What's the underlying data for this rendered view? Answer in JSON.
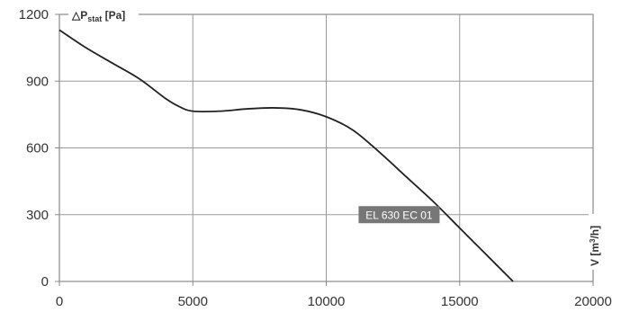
{
  "chart_data": {
    "type": "line",
    "title": "",
    "ylabel": {
      "prefix": "△P",
      "sub": "stat",
      "suffix": " [Pa]"
    },
    "xlabel": {
      "prefix": "V [m",
      "sup": "3",
      "suffix": "/h]"
    },
    "xlim": [
      0,
      20000
    ],
    "ylim": [
      0,
      1200
    ],
    "x_ticks": [
      0,
      5000,
      10000,
      15000,
      20000
    ],
    "y_ticks": [
      0,
      300,
      600,
      900,
      1200
    ],
    "x_tick_labels": [
      "0",
      "5000",
      "10000",
      "15000",
      "20000"
    ],
    "y_tick_labels": [
      "0",
      "300",
      "600",
      "900",
      "1200"
    ],
    "grid": true,
    "series": [
      {
        "name": "EL 630 EC 01",
        "color": "#222222",
        "x": [
          0,
          1000,
          2000,
          3000,
          4000,
          4500,
          5000,
          6000,
          7000,
          8000,
          9000,
          10000,
          11000,
          12000,
          13000,
          14000,
          15000,
          16000,
          17000
        ],
        "y": [
          1130,
          1050,
          980,
          910,
          820,
          785,
          765,
          765,
          775,
          780,
          772,
          740,
          680,
          580,
          470,
          360,
          240,
          120,
          0
        ]
      }
    ],
    "annotations": [
      {
        "text": "EL 630 EC 01",
        "x": 13000,
        "y": 300,
        "bg": "#777777"
      }
    ]
  }
}
